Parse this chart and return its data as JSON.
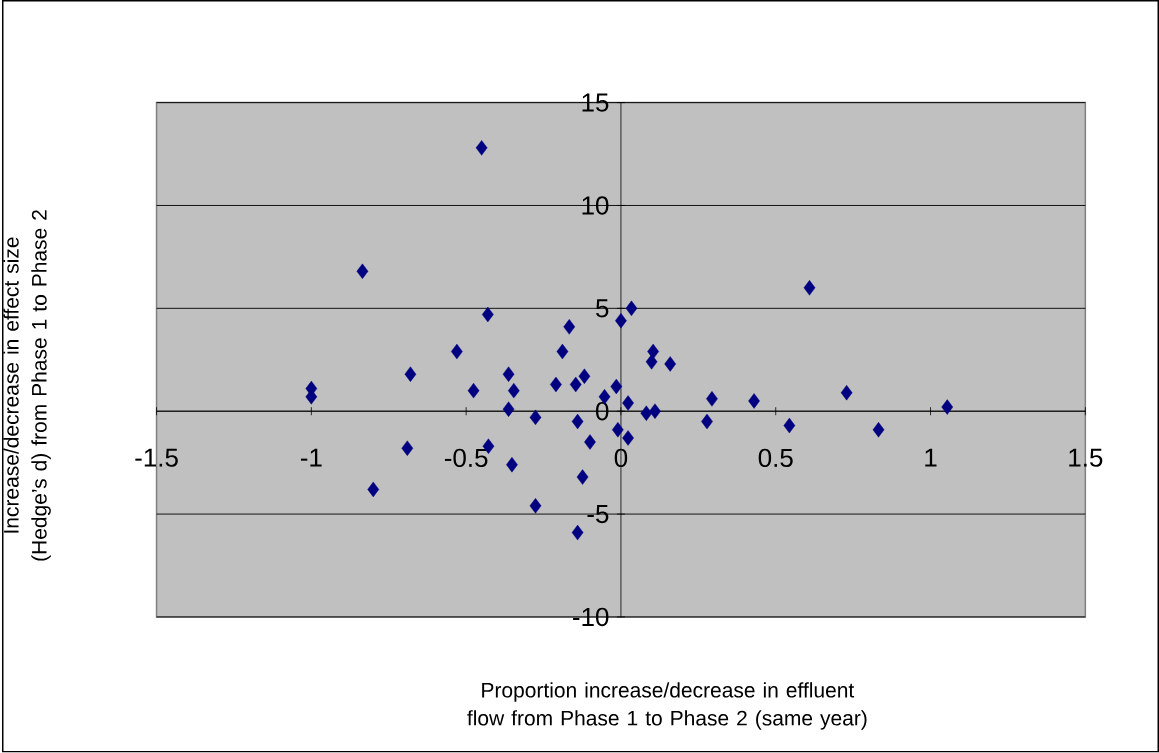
{
  "chart_data": {
    "type": "scatter",
    "xlabel": "Proportion increase/decrease in effluent flow from Phase 1 to Phase 2 (same year)",
    "ylabel": "Increase/decrease in effect size (Hedge’s d) from Phase 1 to Phase 2",
    "x": [
      -1.0,
      -1.0,
      -0.835,
      -0.53,
      -0.68,
      -0.476,
      -0.69,
      -0.8,
      -0.45,
      -0.43,
      -0.363,
      -0.346,
      -0.363,
      -0.276,
      -0.428,
      -0.352,
      -0.276,
      -0.167,
      -0.189,
      -0.21,
      -0.146,
      -0.118,
      -0.14,
      -0.1,
      -0.124,
      -0.14,
      -0.053,
      -0.015,
      0.0,
      0.034,
      0.023,
      -0.01,
      0.023,
      0.104,
      0.099,
      0.159,
      0.082,
      0.11,
      0.294,
      0.278,
      0.43,
      0.609,
      0.544,
      0.729,
      0.832,
      1.054
    ],
    "values": [
      1.1,
      0.7,
      6.8,
      2.9,
      1.8,
      1.0,
      -1.8,
      -3.8,
      12.8,
      4.7,
      1.8,
      1.0,
      0.1,
      -0.3,
      -1.7,
      -2.6,
      -4.6,
      4.1,
      2.9,
      1.3,
      1.3,
      1.7,
      -0.5,
      -1.5,
      -3.2,
      -5.9,
      0.7,
      1.2,
      4.4,
      5.0,
      0.4,
      -0.9,
      -1.3,
      2.9,
      2.4,
      2.3,
      -0.1,
      0.0,
      0.6,
      -0.5,
      0.5,
      6.0,
      -0.7,
      0.9,
      -0.9,
      0.2
    ],
    "color": "#000080",
    "marker": "diamond",
    "xlim": [
      -1.5,
      1.5
    ],
    "xticks": [
      -1.5,
      -1,
      -0.5,
      0,
      0.5,
      1,
      1.5
    ],
    "ylim": [
      -10,
      15
    ],
    "yticks": [
      -10,
      -5,
      0,
      5,
      10,
      15
    ],
    "grid": "y"
  }
}
